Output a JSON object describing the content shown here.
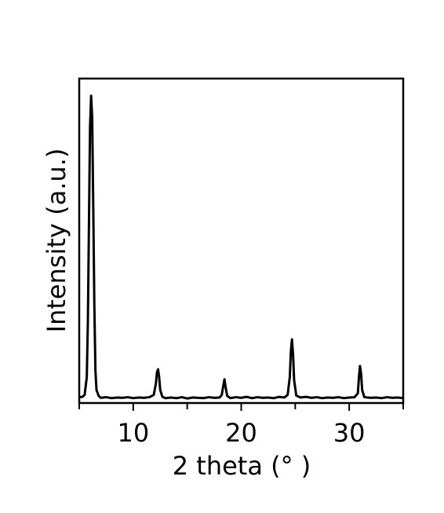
{
  "chart_data": {
    "type": "line",
    "x_label": "2 theta (°  )",
    "y_label": "Intensity (a.u.)",
    "xlim": [
      5,
      35
    ],
    "ylim": [
      0,
      100
    ],
    "xticks": [
      10,
      20,
      30
    ],
    "xminorticks": [
      5,
      15,
      25,
      35
    ],
    "series": [
      {
        "color": "#000000",
        "x": [
          5.0,
          5.3,
          5.5,
          5.7,
          5.8,
          5.9,
          6.0,
          6.1,
          6.2,
          6.3,
          6.4,
          6.5,
          6.6,
          6.8,
          7.0,
          7.5,
          8.0,
          8.5,
          9.0,
          9.5,
          10.0,
          10.5,
          11.0,
          11.5,
          11.9,
          12.1,
          12.2,
          12.3,
          12.4,
          12.5,
          12.7,
          13.0,
          13.5,
          14.0,
          14.5,
          15.0,
          15.5,
          16.0,
          16.5,
          17.0,
          17.5,
          18.0,
          18.2,
          18.35,
          18.45,
          18.55,
          18.7,
          19.0,
          19.5,
          20.0,
          20.5,
          21.0,
          21.5,
          22.0,
          22.5,
          23.0,
          23.5,
          24.0,
          24.3,
          24.5,
          24.6,
          24.7,
          24.8,
          24.9,
          25.1,
          25.5,
          26.0,
          26.5,
          27.0,
          27.5,
          28.0,
          28.5,
          29.0,
          29.5,
          30.0,
          30.5,
          30.8,
          30.9,
          31.0,
          31.1,
          31.2,
          31.4,
          32.0,
          32.5,
          33.0,
          33.5,
          34.0,
          34.5,
          35.0
        ],
        "values": [
          1.8,
          1.9,
          2.5,
          8,
          25,
          55,
          85,
          94.7,
          88,
          60,
          30,
          10,
          4,
          2.2,
          1.6,
          1.8,
          1.5,
          1.7,
          1.6,
          1.8,
          1.5,
          1.7,
          1.6,
          1.8,
          2.5,
          6,
          9.5,
          10.4,
          8,
          4,
          1.9,
          1.5,
          1.7,
          1.5,
          1.8,
          1.4,
          1.7,
          1.6,
          1.5,
          1.8,
          1.6,
          1.7,
          2.5,
          5.5,
          7.3,
          5,
          2.2,
          1.5,
          1.8,
          1.6,
          1.9,
          1.5,
          1.8,
          1.6,
          1.7,
          1.5,
          1.9,
          1.7,
          2.5,
          8,
          16,
          19.6,
          15,
          7,
          2.3,
          1.7,
          1.9,
          1.6,
          1.8,
          1.5,
          1.7,
          1.6,
          1.8,
          1.5,
          1.7,
          1.8,
          3,
          8,
          11.4,
          9,
          4,
          1.8,
          1.6,
          1.7,
          1.5,
          1.8,
          1.6,
          1.7,
          1.5
        ]
      }
    ]
  }
}
